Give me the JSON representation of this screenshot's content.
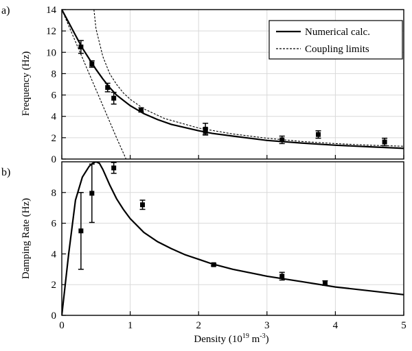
{
  "chart_data": [
    {
      "type": "line",
      "panel_label": "a)",
      "xlabel": "",
      "ylabel": "Frequency (Hz)",
      "xlim": [
        0,
        5
      ],
      "ylim": [
        0,
        14
      ],
      "xticks": [
        0,
        1,
        2,
        3,
        4,
        5
      ],
      "yticks": [
        0,
        2,
        4,
        6,
        8,
        10,
        12,
        14
      ],
      "x_tick_labels_shown": false,
      "grid": true,
      "legend_position": "top-right",
      "legend": [
        "Numerical calc.",
        "Coupling limits"
      ],
      "series": [
        {
          "name": "Numerical calc.",
          "style": "solid",
          "x": [
            0,
            0.1,
            0.2,
            0.3,
            0.4,
            0.5,
            0.6,
            0.7,
            0.8,
            0.9,
            1.0,
            1.2,
            1.4,
            1.6,
            1.8,
            2.0,
            2.2,
            2.5,
            3.0,
            3.5,
            4.0,
            4.5,
            5.0
          ],
          "y": [
            14.0,
            12.8,
            11.6,
            10.4,
            9.4,
            8.4,
            7.5,
            6.7,
            6.0,
            5.5,
            5.0,
            4.25,
            3.7,
            3.25,
            2.95,
            2.65,
            2.4,
            2.15,
            1.75,
            1.5,
            1.3,
            1.15,
            1.0
          ]
        },
        {
          "name": "Coupling limits",
          "style": "dashed",
          "x": [
            0,
            0.2,
            0.4,
            0.6,
            0.8,
            0.94
          ],
          "y": [
            14.0,
            11.0,
            8.0,
            5.0,
            2.0,
            0.0
          ]
        },
        {
          "name": "Coupling limits",
          "style": "dashed",
          "x": [
            0.47,
            0.5,
            0.6,
            0.7,
            0.8,
            0.9,
            1.0,
            1.2,
            1.5,
            2.0,
            2.5,
            3.0,
            3.5,
            4.0,
            4.5,
            5.0
          ],
          "y": [
            14.0,
            12.2,
            9.6,
            8.0,
            7.0,
            6.2,
            5.6,
            4.7,
            3.8,
            2.9,
            2.35,
            1.95,
            1.65,
            1.45,
            1.3,
            1.2
          ]
        },
        {
          "name": "data",
          "style": "markers",
          "x": [
            0.28,
            0.44,
            0.67,
            0.76,
            1.16,
            2.1,
            2.1,
            3.22,
            3.75,
            4.72
          ],
          "y": [
            10.5,
            8.9,
            6.7,
            5.7,
            4.6,
            2.8,
            2.6,
            1.8,
            2.3,
            1.6
          ],
          "yerr": [
            0.6,
            0.3,
            0.4,
            0.55,
            0.2,
            0.55,
            0.3,
            0.35,
            0.35,
            0.35
          ]
        }
      ]
    },
    {
      "type": "line",
      "panel_label": "b)",
      "xlabel": "Density (10",
      "xlabel_sup1": "19",
      "xlabel_mid": " m",
      "xlabel_sup2": "-3",
      "xlabel_end": ")",
      "ylabel": "Damping Rate (Hz)",
      "xlim": [
        0,
        5
      ],
      "ylim": [
        0,
        10
      ],
      "xticks": [
        0,
        1,
        2,
        3,
        4,
        5
      ],
      "yticks": [
        0,
        2,
        4,
        6,
        8
      ],
      "grid": true,
      "series": [
        {
          "name": "Numerical calc.",
          "style": "solid",
          "x": [
            0,
            0.1,
            0.2,
            0.3,
            0.4,
            0.45,
            0.5,
            0.55,
            0.6,
            0.7,
            0.8,
            0.9,
            1.0,
            1.2,
            1.4,
            1.6,
            1.8,
            2.0,
            2.2,
            2.5,
            3.0,
            3.5,
            4.0,
            4.5,
            5.0
          ],
          "y": [
            0,
            4.0,
            7.5,
            9.0,
            9.7,
            9.9,
            10.0,
            9.9,
            9.5,
            8.5,
            7.6,
            6.9,
            6.3,
            5.4,
            4.8,
            4.35,
            3.95,
            3.65,
            3.35,
            3.0,
            2.55,
            2.2,
            1.85,
            1.6,
            1.35
          ]
        },
        {
          "name": "data",
          "style": "markers",
          "x": [
            0.28,
            0.44,
            0.76,
            1.18,
            2.22,
            3.22,
            3.85
          ],
          "y": [
            5.5,
            7.95,
            9.6,
            7.2,
            3.3,
            2.55,
            2.1
          ],
          "yerr": [
            2.5,
            1.9,
            0.35,
            0.3,
            0.08,
            0.25,
            0.15
          ]
        }
      ]
    }
  ]
}
